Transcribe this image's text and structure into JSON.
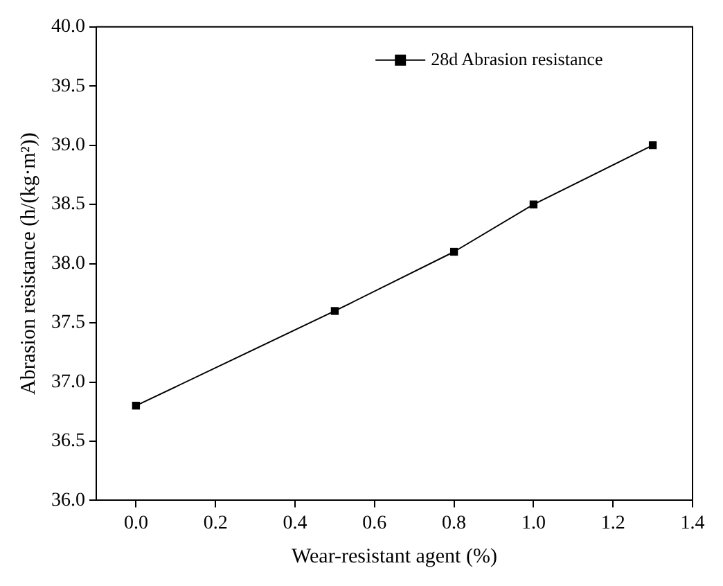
{
  "chart_data": {
    "type": "line",
    "xlabel": "Wear-resistant agent (%)",
    "ylabel": "Abrasion resistance (h/(kg·m²))",
    "x": [
      0,
      0.5,
      0.8,
      1.0,
      1.3
    ],
    "series": [
      {
        "name": "28d Abrasion resistance",
        "color": "#000000",
        "values": [
          36.8,
          37.6,
          38.1,
          38.5,
          39.0
        ]
      }
    ],
    "xlim": [
      -0.1,
      1.4
    ],
    "xticks": [
      {
        "value": 0,
        "label": "0.0"
      },
      {
        "value": 0.2,
        "label": "0.2"
      },
      {
        "value": 0.4,
        "label": "0.4"
      },
      {
        "value": 0.6,
        "label": "0.6"
      },
      {
        "value": 0.8,
        "label": "0.8"
      },
      {
        "value": 1.0,
        "label": "1.0"
      },
      {
        "value": 1.2,
        "label": "1.2"
      },
      {
        "value": 1.4,
        "label": "1.4"
      }
    ],
    "ylim": [
      36,
      40
    ],
    "yticks": [
      {
        "value": 36,
        "label": "36.0"
      },
      {
        "value": 36.5,
        "label": "36.5"
      },
      {
        "value": 37,
        "label": "37.0"
      },
      {
        "value": 37.5,
        "label": "37.5"
      },
      {
        "value": 38,
        "label": "38.0"
      },
      {
        "value": 38.5,
        "label": "38.5"
      },
      {
        "value": 39,
        "label": "39.0"
      },
      {
        "value": 39.5,
        "label": "39.5"
      },
      {
        "value": 40,
        "label": "40.0"
      }
    ],
    "grid": false,
    "legend": "top right",
    "marker": "square",
    "line_style": "solid"
  }
}
